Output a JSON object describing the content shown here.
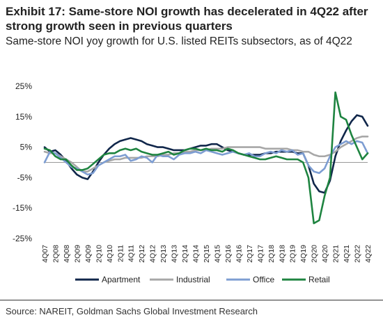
{
  "title": "Exhibit 17: Same-store NOI growth has decelerated in 4Q22 after strong growth seen in previous quarters",
  "subtitle": "Same-store NOI yoy growth for U.S. listed REITs subsectors, as of 4Q22",
  "source": "Source: NAREIT, Goldman Sachs Global Investment Research",
  "chart_data": {
    "type": "line",
    "title": "",
    "xlabel": "",
    "ylabel": "",
    "ylim": [
      -25,
      25
    ],
    "y_ticks": [
      25,
      15,
      5,
      -5,
      -15,
      -25
    ],
    "y_tick_labels": [
      "25%",
      "15%",
      "5%",
      "-5%",
      "-15%",
      "-25%"
    ],
    "grid": false,
    "legend_position": "bottom",
    "x_categories": [
      "4Q07",
      "1Q08",
      "2Q08",
      "3Q08",
      "4Q08",
      "1Q09",
      "2Q09",
      "3Q09",
      "4Q09",
      "1Q10",
      "2Q10",
      "3Q10",
      "4Q10",
      "1Q11",
      "2Q11",
      "3Q11",
      "4Q11",
      "1Q12",
      "2Q12",
      "3Q12",
      "4Q12",
      "1Q13",
      "2Q13",
      "3Q13",
      "4Q13",
      "1Q14",
      "2Q14",
      "3Q14",
      "4Q14",
      "1Q15",
      "2Q15",
      "3Q15",
      "4Q15",
      "1Q16",
      "2Q16",
      "3Q16",
      "4Q16",
      "1Q17",
      "2Q17",
      "3Q17",
      "4Q17",
      "1Q18",
      "2Q18",
      "3Q18",
      "4Q18",
      "1Q19",
      "2Q19",
      "3Q19",
      "4Q19",
      "1Q20",
      "2Q20",
      "3Q20",
      "4Q20",
      "1Q21",
      "2Q21",
      "3Q21",
      "4Q21",
      "1Q22",
      "2Q22",
      "3Q22",
      "4Q22"
    ],
    "x_tick_labels": [
      "4Q07",
      "2Q08",
      "4Q08",
      "2Q09",
      "4Q09",
      "2Q10",
      "4Q10",
      "2Q11",
      "4Q11",
      "2Q12",
      "4Q12",
      "2Q13",
      "4Q13",
      "2Q14",
      "4Q14",
      "2Q15",
      "4Q15",
      "2Q16",
      "4Q16",
      "2Q17",
      "4Q17",
      "2Q18",
      "4Q18",
      "2Q19",
      "4Q19",
      "2Q20",
      "4Q20",
      "2Q21",
      "4Q21",
      "2Q22",
      "4Q22"
    ],
    "series": [
      {
        "name": "Apartment",
        "color": "#10264a",
        "values": [
          5,
          3.5,
          4,
          2.5,
          0.5,
          -2,
          -4,
          -5,
          -5.5,
          -3,
          0,
          2.5,
          4.5,
          6,
          7,
          7.5,
          8,
          7.5,
          7,
          6,
          5.5,
          5,
          5,
          4.5,
          4,
          4,
          4,
          4.5,
          5,
          5.5,
          5.5,
          6,
          6,
          5,
          4,
          3.5,
          3,
          2.5,
          2.5,
          2.5,
          2.5,
          3,
          3,
          3.5,
          3.5,
          3.5,
          3.5,
          3,
          3,
          -1,
          -7,
          -9.5,
          -10,
          -6,
          2,
          7,
          10.5,
          13.5,
          15.5,
          15,
          12
        ]
      },
      {
        "name": "Industrial",
        "color": "#a7a7a7",
        "values": [
          3.5,
          3,
          3,
          2,
          1,
          0,
          -1.5,
          -3,
          -3,
          -2,
          -1,
          0,
          0.5,
          1,
          1,
          1.5,
          1.5,
          1.5,
          1.5,
          2,
          2,
          2,
          2.5,
          2.5,
          3,
          3,
          3.5,
          3.5,
          4,
          4,
          4,
          4.5,
          4.5,
          4.5,
          5,
          5,
          5,
          5,
          5,
          5,
          5,
          4.5,
          4.5,
          4.5,
          4.5,
          4.5,
          4,
          4,
          3.5,
          3.5,
          2.5,
          2,
          2,
          2.5,
          3.5,
          5,
          6,
          7,
          8,
          8.5,
          8.5
        ]
      },
      {
        "name": "Office",
        "color": "#7d9dd2",
        "values": [
          0,
          3.5,
          3,
          1.5,
          0,
          -1.5,
          -2,
          -3,
          -4,
          -3.5,
          -1,
          0,
          1,
          2,
          2,
          2.5,
          0.5,
          1,
          2,
          1.5,
          0,
          2.5,
          2,
          2,
          1,
          2.5,
          3,
          3,
          3.5,
          3,
          4,
          3.5,
          3,
          2.5,
          3,
          3.5,
          3,
          2.5,
          3,
          2,
          2,
          3,
          3.5,
          3,
          4,
          3.5,
          4,
          2.5,
          3,
          -1,
          -3,
          -3.5,
          -2,
          2,
          5,
          6,
          7,
          6,
          7,
          6.5,
          3
        ]
      },
      {
        "name": "Retail",
        "color": "#1e8440",
        "values": [
          4.5,
          4,
          2,
          1,
          1,
          -1,
          -2.5,
          -2.5,
          -2,
          -0.5,
          1,
          2.5,
          3,
          3,
          4,
          4.5,
          4,
          4.5,
          3.5,
          3,
          2.5,
          2.5,
          3,
          3.5,
          2.5,
          3,
          4,
          4.5,
          4.5,
          4,
          4.5,
          4,
          4,
          3.5,
          4.5,
          4,
          3,
          2.5,
          2,
          1.5,
          1,
          1,
          1.5,
          2,
          1.5,
          1,
          1,
          1,
          0,
          -5,
          -20,
          -19,
          -11,
          -5,
          23,
          15,
          14,
          9,
          5,
          1,
          3
        ]
      }
    ]
  },
  "legend": [
    "Apartment",
    "Industrial",
    "Office",
    "Retail"
  ]
}
